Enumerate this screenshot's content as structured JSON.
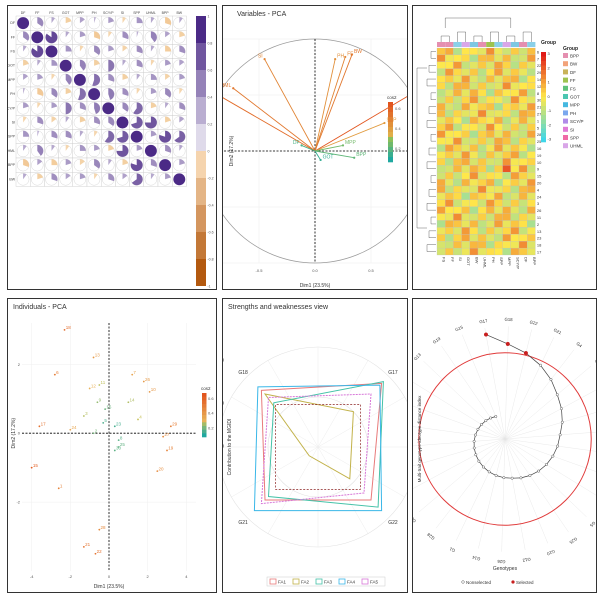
{
  "panels": {
    "corr": {
      "vars": [
        "DF",
        "FF",
        "FS",
        "GOT",
        "MPP",
        "PH",
        "SCY/P",
        "SI",
        "SPP",
        "UHML",
        "BPP",
        "BW"
      ],
      "scale": [
        "1",
        "0.8",
        "0.6",
        "0.4",
        "0.2",
        "0",
        "-0.2",
        "-0.4",
        "-0.6",
        "-0.8",
        "-1"
      ]
    },
    "pca_vars": {
      "title": "Variables - PCA",
      "xlabel": "Dim1 (23.5%)",
      "ylabel": "Dim2 (17.2%)",
      "legend_title": "cos2",
      "legend_ticks": [
        "0.6",
        "0.4",
        "0.2"
      ],
      "axis_ticks_x": [
        "-1.0",
        "-0.5",
        "0.0",
        "0.5",
        "1.0"
      ],
      "axis_ticks_y": [
        "1.0",
        "0.5",
        "0.0",
        "-0.5",
        "-1.0"
      ]
    },
    "heatmap": {
      "legend_title": "Group",
      "groups": [
        "BPP",
        "BW",
        "DF",
        "FF",
        "FS",
        "GOT",
        "MPP",
        "PH",
        "SCY/P",
        "SI",
        "SPP",
        "UHML"
      ],
      "scale_ticks": [
        "3",
        "2",
        "1",
        "0",
        "-1",
        "-2",
        "-3"
      ],
      "row_labels": [
        "6",
        "7",
        "22",
        "29",
        "14",
        "12",
        "8",
        "30",
        "21",
        "27",
        "1",
        "5",
        "28",
        "25",
        "16",
        "19",
        "10",
        "9",
        "15",
        "20",
        "4",
        "24",
        "3",
        "26",
        "11",
        "2",
        "13",
        "23",
        "18",
        "17"
      ],
      "col_labels": [
        "FS",
        "FF",
        "SI",
        "GOT",
        "BW",
        "UHML",
        "PH",
        "SPP",
        "MPP",
        "SCY/P",
        "DF",
        "BPP"
      ]
    },
    "pca_ind": {
      "title": "Individuals - PCA",
      "xlabel": "Dim1 (23.5%)",
      "ylabel": "Dim2 (17.2%)",
      "legend_title": "cos2",
      "legend_ticks": [
        "0.6",
        "0.4",
        "0.2"
      ],
      "axis_ticks_x": [
        "-4",
        "-2",
        "0",
        "2",
        "4"
      ],
      "axis_ticks_y": [
        "2",
        "0",
        "-2"
      ]
    },
    "radar": {
      "title": "Strengths and weaknesses view",
      "ylabel": "Contribution to the MGIDI",
      "axes": [
        "G17",
        "G22",
        "G21",
        "G18"
      ],
      "radial_ticks": [
        "20",
        "40",
        "60"
      ],
      "legend": [
        "FA1",
        "FA2",
        "FA3",
        "FA4",
        "FA5"
      ]
    },
    "spiral": {
      "ylabel": "Multi-trait genotype-ideotype distance index",
      "xlabel": "Genotypes",
      "legend": [
        "Nonselected",
        "Selected"
      ],
      "genotypes": [
        "G17",
        "G18",
        "G22",
        "G21",
        "G4",
        "G8",
        "G6",
        "G2",
        "G23",
        "G29",
        "G3",
        "G7",
        "G5",
        "G25",
        "G10",
        "G12",
        "G26",
        "G14",
        "G1",
        "G28",
        "G24",
        "G11",
        "G30",
        "G9",
        "G27",
        "G20",
        "G16",
        "G13",
        "G19",
        "G15"
      ]
    }
  },
  "chart_data": [
    {
      "type": "heatmap",
      "variables": [
        "DF",
        "FF",
        "FS",
        "GOT",
        "MPP",
        "PH",
        "SCY/P",
        "SI",
        "SPP",
        "UHML",
        "BPP",
        "BW"
      ],
      "color_scale": [
        -1,
        1
      ],
      "matrix": [
        [
          1,
          0.35,
          0.1,
          -0.2,
          0.15,
          0.05,
          0.2,
          -0.1,
          0.25,
          0.1,
          -0.3,
          0.1
        ],
        [
          0.35,
          1,
          0.85,
          0.1,
          0.2,
          -0.3,
          -0.1,
          0.3,
          0.05,
          0.4,
          0.15,
          -0.2
        ],
        [
          0.1,
          0.85,
          1,
          0.25,
          -0.1,
          0.35,
          0.2,
          -0.15,
          0.3,
          0.1,
          -0.25,
          0.3
        ],
        [
          -0.2,
          0.1,
          0.25,
          1,
          0.4,
          -0.2,
          0.5,
          0.1,
          0.3,
          -0.1,
          0.2,
          0.15
        ],
        [
          0.15,
          0.2,
          -0.1,
          0.4,
          1,
          0.55,
          0.3,
          -0.2,
          0.1,
          0.25,
          -0.15,
          0.2
        ],
        [
          0.05,
          -0.3,
          0.35,
          -0.2,
          0.55,
          1,
          0.45,
          0.3,
          -0.1,
          0.2,
          0.35,
          -0.1
        ],
        [
          0.2,
          -0.1,
          0.2,
          0.5,
          0.3,
          0.45,
          1,
          0.35,
          0.6,
          -0.2,
          0.1,
          0.3
        ],
        [
          -0.1,
          0.3,
          -0.15,
          0.1,
          -0.2,
          0.3,
          0.35,
          1,
          0.7,
          0.75,
          -0.2,
          0.15
        ],
        [
          0.25,
          0.05,
          0.3,
          0.3,
          0.1,
          -0.1,
          0.6,
          0.7,
          1,
          0.2,
          0.8,
          0.65
        ],
        [
          0.1,
          0.4,
          0.1,
          -0.1,
          0.25,
          0.2,
          -0.2,
          0.75,
          0.2,
          1,
          0.3,
          0.1
        ],
        [
          -0.3,
          0.15,
          -0.25,
          0.2,
          -0.15,
          0.35,
          0.1,
          -0.2,
          0.8,
          0.3,
          1,
          0.2
        ],
        [
          0.1,
          -0.2,
          0.3,
          0.15,
          0.2,
          -0.1,
          0.3,
          0.15,
          0.65,
          0.1,
          0.2,
          1
        ]
      ]
    },
    {
      "type": "scatter",
      "title": "Variables - PCA",
      "xlabel": "Dim1 (23.5%)",
      "ylabel": "Dim2 (17.2%)",
      "xlim": [
        -1,
        1
      ],
      "ylim": [
        -1,
        1
      ],
      "points": [
        {
          "name": "SI",
          "x": -0.45,
          "y": 0.82,
          "cos2": 0.5
        },
        {
          "name": "UHML",
          "x": -0.73,
          "y": 0.56,
          "cos2": 0.55
        },
        {
          "name": "FS",
          "x": -0.83,
          "y": 0.48,
          "cos2": 0.6
        },
        {
          "name": "PH",
          "x": 0.18,
          "y": 0.82,
          "cos2": 0.45
        },
        {
          "name": "FF",
          "x": 0.27,
          "y": 0.84,
          "cos2": 0.5
        },
        {
          "name": "BW",
          "x": 0.33,
          "y": 0.86,
          "cos2": 0.55
        },
        {
          "name": "SCY/P",
          "x": 0.88,
          "y": 0.52,
          "cos2": 0.7
        },
        {
          "name": "SPP",
          "x": 0.62,
          "y": 0.25,
          "cos2": 0.4
        },
        {
          "name": "MPP",
          "x": 0.25,
          "y": 0.05,
          "cos2": 0.2
        },
        {
          "name": "DF",
          "x": -0.12,
          "y": 0.05,
          "cos2": 0.1
        },
        {
          "name": "BPP",
          "x": 0.35,
          "y": -0.06,
          "cos2": 0.15
        },
        {
          "name": "GOT",
          "x": 0.05,
          "y": -0.08,
          "cos2": 0.05
        }
      ]
    },
    {
      "type": "scatter",
      "title": "Individuals - PCA",
      "xlabel": "Dim1 (23.5%)",
      "ylabel": "Dim2 (17.2%)",
      "xlim": [
        -4.5,
        4.5
      ],
      "ylim": [
        -4,
        3.2
      ],
      "points": [
        {
          "name": "18",
          "x": -2.3,
          "y": 3.0
        },
        {
          "name": "6",
          "x": -2.8,
          "y": 1.7
        },
        {
          "name": "13",
          "x": -0.8,
          "y": 2.2
        },
        {
          "name": "11",
          "x": -0.5,
          "y": 1.4
        },
        {
          "name": "12",
          "x": -1.0,
          "y": 1.3
        },
        {
          "name": "9",
          "x": -0.6,
          "y": 0.9
        },
        {
          "name": "7",
          "x": 1.2,
          "y": 1.7
        },
        {
          "name": "26",
          "x": 1.8,
          "y": 1.5
        },
        {
          "name": "10",
          "x": 2.1,
          "y": 1.2
        },
        {
          "name": "14",
          "x": 1.0,
          "y": 0.9
        },
        {
          "name": "3",
          "x": -1.3,
          "y": 0.5
        },
        {
          "name": "16",
          "x": -0.2,
          "y": 0.7
        },
        {
          "name": "5",
          "x": -0.3,
          "y": 0.3
        },
        {
          "name": "23",
          "x": 0.3,
          "y": 0.2
        },
        {
          "name": "24",
          "x": -2.0,
          "y": 0.1
        },
        {
          "name": "2",
          "x": -0.8,
          "y": 0.0
        },
        {
          "name": "8",
          "x": 0.5,
          "y": -0.2
        },
        {
          "name": "4",
          "x": 1.5,
          "y": 0.4
        },
        {
          "name": "27",
          "x": 2.8,
          "y": -0.1
        },
        {
          "name": "29",
          "x": 3.2,
          "y": 0.2
        },
        {
          "name": "25",
          "x": 0.5,
          "y": -0.4
        },
        {
          "name": "30",
          "x": 0.3,
          "y": -0.5
        },
        {
          "name": "19",
          "x": 3.0,
          "y": -0.5
        },
        {
          "name": "20",
          "x": 2.5,
          "y": -1.1
        },
        {
          "name": "15",
          "x": -4.0,
          "y": -1.0
        },
        {
          "name": "1",
          "x": -2.6,
          "y": -1.6
        },
        {
          "name": "28",
          "x": -0.5,
          "y": -2.8
        },
        {
          "name": "21",
          "x": -1.3,
          "y": -3.3
        },
        {
          "name": "22",
          "x": -0.7,
          "y": -3.5
        },
        {
          "name": "17",
          "x": -3.6,
          "y": 0.2
        }
      ]
    },
    {
      "type": "radar",
      "title": "Strengths and weaknesses view",
      "axes": [
        "G17",
        "G22",
        "G21",
        "G18"
      ],
      "rlim": [
        60,
        20
      ],
      "series": [
        {
          "name": "FA1",
          "values": [
            24,
            30,
            30,
            28
          ]
        },
        {
          "name": "FA2",
          "values": [
            40,
            42,
            55,
            30
          ]
        },
        {
          "name": "FA3",
          "values": [
            23,
            26,
            32,
            35
          ]
        },
        {
          "name": "FA4",
          "values": [
            25,
            24,
            24,
            26
          ]
        },
        {
          "name": "FA5",
          "values": [
            30,
            34,
            28,
            32
          ]
        }
      ]
    },
    {
      "type": "line",
      "title": "",
      "xlabel": "Genotypes",
      "ylabel": "Multi-trait genotype-ideotype distance index",
      "series": [
        {
          "name": "Selected",
          "values": [
            4.8,
            4.3,
            4.0
          ]
        },
        {
          "name": "Nonselected",
          "values": [
            3.7,
            3.4,
            3.1,
            2.9,
            2.7,
            2.5,
            2.4,
            2.3,
            2.2,
            2.1,
            2.0,
            1.9,
            1.8,
            1.75,
            1.7,
            1.65,
            1.6,
            1.55,
            1.5,
            1.45,
            1.4,
            1.35,
            1.3,
            1.25,
            1.2,
            1.15,
            1.1
          ]
        }
      ],
      "cutpoint": 3.9
    }
  ]
}
